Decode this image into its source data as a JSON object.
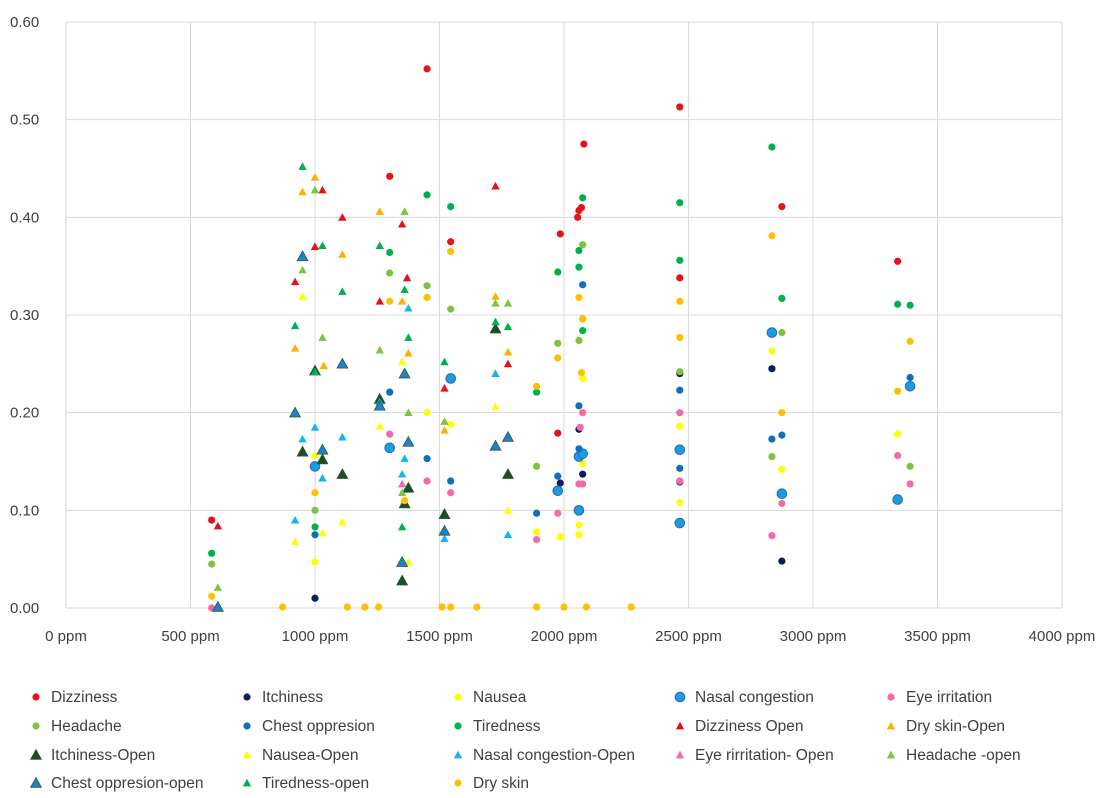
{
  "chart_data": {
    "type": "scatter",
    "title": "",
    "xlabel": "",
    "ylabel": "",
    "xlim": [
      0,
      4000
    ],
    "ylim": [
      0,
      0.6
    ],
    "xticks": [
      0,
      500,
      1000,
      1500,
      2000,
      2500,
      3000,
      3500,
      4000
    ],
    "xtick_labels": [
      "0 ppm",
      "500 ppm",
      "1000 ppm",
      "1500 ppm",
      "2000 ppm",
      "2500 ppm",
      "3000 ppm",
      "3500 ppm",
      "4000 ppm"
    ],
    "yticks": [
      0,
      0.1,
      0.2,
      0.3,
      0.4,
      0.5,
      0.6
    ],
    "ytick_labels": [
      "0.00",
      "0.10",
      "0.20",
      "0.30",
      "0.40",
      "0.50",
      "0.60"
    ],
    "grid": "major gridlines on both axes",
    "legend_position": "bottom",
    "series": [
      {
        "name": "Dizziness",
        "marker": "circle",
        "color": "#e8111b",
        "points": [
          [
            585,
            0.09
          ],
          [
            1300,
            0.442
          ],
          [
            1450,
            0.552
          ],
          [
            1545,
            0.375
          ],
          [
            1975,
            0.179
          ],
          [
            1985,
            0.383
          ],
          [
            2055,
            0.4
          ],
          [
            2060,
            0.407
          ],
          [
            2070,
            0.41
          ],
          [
            2080,
            0.475
          ],
          [
            2465,
            0.338
          ],
          [
            2465,
            0.513
          ],
          [
            2875,
            0.411
          ],
          [
            3340,
            0.355
          ]
        ]
      },
      {
        "name": "Itchiness",
        "marker": "circle",
        "color": "#0a1f5c",
        "points": [
          [
            1000,
            0.01
          ],
          [
            1985,
            0.128
          ],
          [
            2060,
            0.183
          ],
          [
            2060,
            0.155
          ],
          [
            2075,
            0.137
          ],
          [
            2465,
            0.24
          ],
          [
            2465,
            0.129
          ],
          [
            2835,
            0.245
          ],
          [
            2875,
            0.048
          ]
        ]
      },
      {
        "name": "Nausea",
        "marker": "circle",
        "color": "#ffff00",
        "points": [
          [
            1000,
            0.047
          ],
          [
            1450,
            0.2
          ],
          [
            1545,
            0.188
          ],
          [
            1890,
            0.078
          ],
          [
            1985,
            0.073
          ],
          [
            2060,
            0.085
          ],
          [
            2060,
            0.075
          ],
          [
            2075,
            0.148
          ],
          [
            2075,
            0.235
          ],
          [
            2465,
            0.186
          ],
          [
            2465,
            0.108
          ],
          [
            2835,
            0.263
          ],
          [
            2875,
            0.142
          ],
          [
            3340,
            0.178
          ]
        ]
      },
      {
        "name": "Nasal congestion",
        "marker": "circle-large",
        "color": "#1f9ae0",
        "points": [
          [
            1000,
            0.145
          ],
          [
            1300,
            0.164
          ],
          [
            1545,
            0.235
          ],
          [
            1975,
            0.12
          ],
          [
            2060,
            0.1
          ],
          [
            2060,
            0.155
          ],
          [
            2075,
            0.158
          ],
          [
            2465,
            0.162
          ],
          [
            2465,
            0.087
          ],
          [
            2835,
            0.282
          ],
          [
            2875,
            0.117
          ],
          [
            3340,
            0.111
          ],
          [
            3390,
            0.227
          ]
        ]
      },
      {
        "name": "Eye irritation",
        "marker": "circle",
        "color": "#f06ba8",
        "points": [
          [
            585,
            0.0
          ],
          [
            1300,
            0.178
          ],
          [
            1450,
            0.13
          ],
          [
            1545,
            0.118
          ],
          [
            1890,
            0.07
          ],
          [
            1975,
            0.097
          ],
          [
            2060,
            0.127
          ],
          [
            2065,
            0.185
          ],
          [
            2075,
            0.2
          ],
          [
            2075,
            0.127
          ],
          [
            2465,
            0.2
          ],
          [
            2465,
            0.13
          ],
          [
            2835,
            0.074
          ],
          [
            2875,
            0.107
          ],
          [
            3340,
            0.156
          ],
          [
            3390,
            0.127
          ]
        ]
      },
      {
        "name": "Headache",
        "marker": "circle",
        "color": "#7cc540",
        "points": [
          [
            585,
            0.045
          ],
          [
            1000,
            0.1
          ],
          [
            1300,
            0.343
          ],
          [
            1450,
            0.33
          ],
          [
            1545,
            0.306
          ],
          [
            1890,
            0.145
          ],
          [
            1975,
            0.271
          ],
          [
            2060,
            0.274
          ],
          [
            2075,
            0.372
          ],
          [
            2075,
            0.296
          ],
          [
            2465,
            0.242
          ],
          [
            2835,
            0.155
          ],
          [
            2875,
            0.282
          ],
          [
            3390,
            0.145
          ]
        ]
      },
      {
        "name": "Chest oppresion",
        "marker": "circle",
        "color": "#0f6fbf",
        "points": [
          [
            1000,
            0.075
          ],
          [
            1300,
            0.221
          ],
          [
            1450,
            0.153
          ],
          [
            1545,
            0.13
          ],
          [
            1890,
            0.097
          ],
          [
            1975,
            0.135
          ],
          [
            2060,
            0.207
          ],
          [
            2060,
            0.163
          ],
          [
            2075,
            0.331
          ],
          [
            2465,
            0.223
          ],
          [
            2465,
            0.143
          ],
          [
            2835,
            0.173
          ],
          [
            2875,
            0.177
          ],
          [
            3390,
            0.236
          ]
        ]
      },
      {
        "name": "Tiredness",
        "marker": "circle",
        "color": "#00b050",
        "points": [
          [
            585,
            0.056
          ],
          [
            1000,
            0.083
          ],
          [
            1300,
            0.364
          ],
          [
            1450,
            0.423
          ],
          [
            1545,
            0.411
          ],
          [
            1890,
            0.221
          ],
          [
            1975,
            0.344
          ],
          [
            2060,
            0.366
          ],
          [
            2060,
            0.349
          ],
          [
            2075,
            0.42
          ],
          [
            2075,
            0.284
          ],
          [
            2465,
            0.415
          ],
          [
            2465,
            0.356
          ],
          [
            2835,
            0.472
          ],
          [
            2875,
            0.317
          ],
          [
            3340,
            0.311
          ],
          [
            3390,
            0.31
          ]
        ]
      },
      {
        "name": "Dizziness Open",
        "marker": "triangle",
        "color": "#e8111b",
        "points": [
          [
            610,
            0.084
          ],
          [
            920,
            0.334
          ],
          [
            1000,
            0.37
          ],
          [
            1030,
            0.428
          ],
          [
            1110,
            0.4
          ],
          [
            1260,
            0.314
          ],
          [
            1350,
            0.393
          ],
          [
            1370,
            0.338
          ],
          [
            1520,
            0.225
          ],
          [
            1725,
            0.432
          ],
          [
            1775,
            0.25
          ]
        ]
      },
      {
        "name": "Dry skin-Open",
        "marker": "triangle",
        "color": "#ffb000",
        "points": [
          [
            920,
            0.266
          ],
          [
            950,
            0.426
          ],
          [
            1000,
            0.441
          ],
          [
            1035,
            0.248
          ],
          [
            1110,
            0.362
          ],
          [
            1260,
            0.406
          ],
          [
            1350,
            0.314
          ],
          [
            1375,
            0.261
          ],
          [
            1520,
            0.182
          ],
          [
            1725,
            0.319
          ],
          [
            1775,
            0.262
          ]
        ]
      },
      {
        "name": "Itchiness-Open",
        "marker": "triangle-large",
        "color": "#1d4d25",
        "points": [
          [
            950,
            0.16
          ],
          [
            1000,
            0.243
          ],
          [
            1030,
            0.152
          ],
          [
            1110,
            0.137
          ],
          [
            1260,
            0.214
          ],
          [
            1350,
            0.028
          ],
          [
            1360,
            0.107
          ],
          [
            1375,
            0.123
          ],
          [
            1520,
            0.096
          ],
          [
            1725,
            0.286
          ],
          [
            1775,
            0.137
          ]
        ]
      },
      {
        "name": "Nausea-Open",
        "marker": "triangle",
        "color": "#ffff00",
        "points": [
          [
            920,
            0.068
          ],
          [
            950,
            0.319
          ],
          [
            1000,
            0.157
          ],
          [
            1030,
            0.077
          ],
          [
            1110,
            0.088
          ],
          [
            1260,
            0.186
          ],
          [
            1350,
            0.252
          ],
          [
            1375,
            0.047
          ],
          [
            1725,
            0.206
          ],
          [
            1775,
            0.1
          ]
        ]
      },
      {
        "name": "Nasal congestion-Open",
        "marker": "triangle",
        "color": "#14b4f0",
        "points": [
          [
            920,
            0.09
          ],
          [
            950,
            0.173
          ],
          [
            1000,
            0.185
          ],
          [
            1030,
            0.133
          ],
          [
            1110,
            0.175
          ],
          [
            1260,
            0.211
          ],
          [
            1350,
            0.137
          ],
          [
            1360,
            0.153
          ],
          [
            1375,
            0.307
          ],
          [
            1520,
            0.071
          ],
          [
            1725,
            0.24
          ],
          [
            1775,
            0.075
          ]
        ]
      },
      {
        "name": "Eye rirritation- Open",
        "marker": "triangle",
        "color": "#f06ba8",
        "points": [
          [
            1350,
            0.127
          ]
        ]
      },
      {
        "name": "Headache -open",
        "marker": "triangle",
        "color": "#7cc540",
        "points": [
          [
            610,
            0.021
          ],
          [
            950,
            0.346
          ],
          [
            1000,
            0.428
          ],
          [
            1030,
            0.277
          ],
          [
            1260,
            0.264
          ],
          [
            1350,
            0.118
          ],
          [
            1360,
            0.406
          ],
          [
            1375,
            0.2
          ],
          [
            1520,
            0.191
          ],
          [
            1725,
            0.312
          ],
          [
            1775,
            0.312
          ]
        ]
      },
      {
        "name": "Chest oppresion-open",
        "marker": "triangle-large",
        "color": "#1f7fd0",
        "points": [
          [
            610,
            0.001
          ],
          [
            920,
            0.2
          ],
          [
            950,
            0.36
          ],
          [
            1030,
            0.162
          ],
          [
            1110,
            0.25
          ],
          [
            1260,
            0.207
          ],
          [
            1350,
            0.047
          ],
          [
            1360,
            0.24
          ],
          [
            1375,
            0.17
          ],
          [
            1520,
            0.079
          ],
          [
            1725,
            0.166
          ],
          [
            1775,
            0.175
          ]
        ]
      },
      {
        "name": "Tiredness-open",
        "marker": "triangle",
        "color": "#00b050",
        "points": [
          [
            920,
            0.289
          ],
          [
            950,
            0.452
          ],
          [
            1000,
            0.242
          ],
          [
            1030,
            0.371
          ],
          [
            1110,
            0.324
          ],
          [
            1260,
            0.371
          ],
          [
            1350,
            0.083
          ],
          [
            1360,
            0.326
          ],
          [
            1375,
            0.277
          ],
          [
            1520,
            0.252
          ],
          [
            1725,
            0.293
          ],
          [
            1775,
            0.288
          ]
        ]
      },
      {
        "name": "Dry skin",
        "marker": "circle",
        "color": "#ffc000",
        "points": [
          [
            585,
            0.012
          ],
          [
            870,
            0.001
          ],
          [
            1000,
            0.118
          ],
          [
            1130,
            0.001
          ],
          [
            1200,
            0.001
          ],
          [
            1255,
            0.001
          ],
          [
            1300,
            0.314
          ],
          [
            1360,
            0.11
          ],
          [
            1450,
            0.318
          ],
          [
            1510,
            0.001
          ],
          [
            1545,
            0.365
          ],
          [
            1545,
            0.001
          ],
          [
            1650,
            0.001
          ],
          [
            1890,
            0.227
          ],
          [
            1890,
            0.001
          ],
          [
            1975,
            0.256
          ],
          [
            2000,
            0.001
          ],
          [
            2060,
            0.318
          ],
          [
            2070,
            0.241
          ],
          [
            2075,
            0.296
          ],
          [
            2090,
            0.001
          ],
          [
            2270,
            0.001
          ],
          [
            2465,
            0.314
          ],
          [
            2465,
            0.277
          ],
          [
            2835,
            0.381
          ],
          [
            2875,
            0.2
          ],
          [
            3340,
            0.222
          ],
          [
            3390,
            0.273
          ]
        ]
      }
    ]
  }
}
